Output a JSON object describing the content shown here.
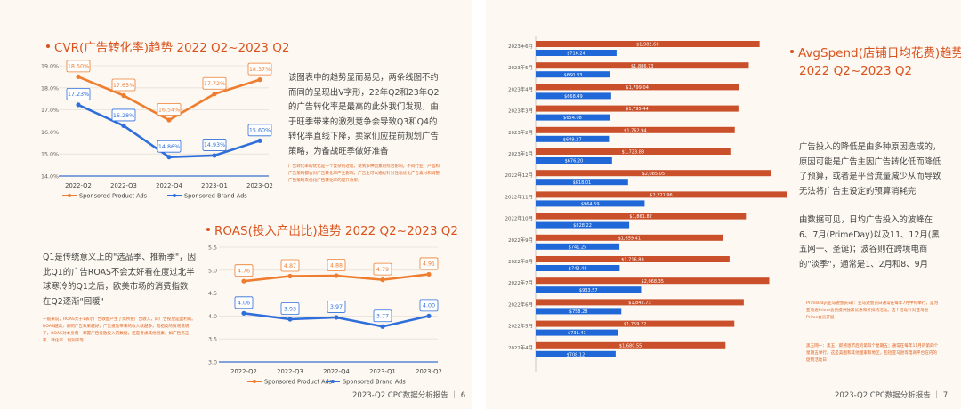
{
  "page6": {
    "cvr_title": "CVR(广告转化率)趋势 2022 Q2~2023 Q2",
    "cvr_text": "该图表中的趋势显而易见，两条线图不约而同的呈现出V字形，22年Q2和23年Q2的广告转化率是最高的此外我们发现，由于旺季带来的激烈竞争会导致Q3和Q4的转化率直线下降，卖家们应提前规划广告策略，为备战旺季做好准备",
    "cvr_note": "广告转化率的优化是一个复杂的过程，受到多种因素的综合影响。不同行业、产品和广告策略都会对广告转化率产生影响。广告主可以通过针对性地优化广告素材和调整广告策略来优化广告转化率的提升效果。",
    "roas_title": "ROAS(投入产出比)趋势 2022 Q2~2023 Q2",
    "roas_text": "Q1是传统意义上的\"选品季、推新季\"，因此Q1的广告ROAS不会太好看在度过北半球寒冷的Q1之后，欧美市场的消费指数在Q2逐渐\"回暖\"",
    "roas_note": "一般来说，ROAS大于1表示广告收益产生了比所投广告收入，即广告投放是盈利的。ROAS越高，表明广告效果越好，广告投放带来的收入就越多，而相反的情况说明了，ROAS对本身而一掌握广告投放投入的数据，还是考虑其他因素，如广告点击率、转化率、利润率等",
    "footer": "2023-Q2 CPC数据分析报告",
    "page_num": "6"
  },
  "page7": {
    "title_line1": "AvgSpend(店铺日均花费)趋势",
    "title_line2": "2022 Q2~2023 Q2",
    "text1": "广告投入的降低是由多种原因造成的，原因可能是广告主因广告转化低而降低了预算，或者是平台流量减少从而导致无法将广告主设定的预算消耗完",
    "text2": "由数据可见，日均广告投入的波峰在6、7月(PrimeDay)以及11、12月(黑五网一、圣诞)；波谷则在跨境电商的\"淡季\"，通常是1、2月和8、9月",
    "note1": "PrimeDay(亚马逊会员日)：亚马逊会员日通常在每年7月中旬举行，是为亚马逊Prime会员提供独家优惠和折扣的活动。这个活动针对亚马逊Prime会员开展",
    "note2": "黑五网一：黑五，即感恩节后的第四个星期五；通常在每年11月的第四个星期五举行。这是美国和其他国家和地区，包括亚马逊等电商平台在内的促销活动日",
    "footer": "2023-Q2 CPC数据分析报告",
    "page_num": "7"
  },
  "colors": {
    "accent": "#d9531e",
    "orange": "#ee7d30",
    "blue": "#2f6fdb",
    "bar_red": "#c9502a",
    "bar_blue": "#2068d8"
  },
  "chart_data": [
    {
      "type": "line",
      "categories": [
        "2022-Q2",
        "2022-Q3",
        "2022-Q4",
        "2023-Q1",
        "2023-Q2"
      ],
      "series": [
        {
          "name": "Sponsored Product Ads",
          "values": [
            18.5,
            17.65,
            16.54,
            17.72,
            18.37
          ],
          "labels": [
            "18.50%",
            "17.65%",
            "16.54%",
            "17.72%",
            "18.37%"
          ]
        },
        {
          "name": "Sponsored Brand Ads",
          "values": [
            17.23,
            16.28,
            14.86,
            14.93,
            15.6
          ],
          "labels": [
            "17.23%",
            "16.28%",
            "14.86%",
            "14.93%",
            "15.60%"
          ]
        }
      ],
      "yticks": [
        "19.0%",
        "18.0%",
        "17.0%",
        "16.0%",
        "15.0%",
        "14.0%"
      ],
      "ylim": [
        14.0,
        19.0
      ]
    },
    {
      "type": "line",
      "categories": [
        "2022-Q2",
        "2022-Q3",
        "2022-Q4",
        "2023-Q1",
        "2023-Q2"
      ],
      "series": [
        {
          "name": "Sponsored Product Ads",
          "values": [
            4.76,
            4.87,
            4.88,
            4.79,
            4.91
          ],
          "labels": [
            "4.76",
            "4.87",
            "4.88",
            "4.79",
            "4.91"
          ]
        },
        {
          "name": "Sponsored Brand Ads",
          "values": [
            4.06,
            3.93,
            3.97,
            3.77,
            4.0
          ],
          "labels": [
            "4.06",
            "3.93",
            "3.97",
            "3.77",
            "4.00"
          ]
        }
      ],
      "yticks": [
        "5.5",
        "5.0",
        "4.5",
        "4.0",
        "3.5",
        "3.0"
      ],
      "ylim": [
        3.0,
        5.5
      ]
    },
    {
      "type": "bar",
      "orientation": "horizontal",
      "categories": [
        "2023年6月",
        "2023年5月",
        "2023年4月",
        "2023年3月",
        "2023年2月",
        "2023年1月",
        "2022年12月",
        "2022年11月",
        "2022年10月",
        "2022年9月",
        "2022年8月",
        "2022年7月",
        "2022年6月",
        "2022年5月",
        "2022年4月"
      ],
      "series": [
        {
          "name": "",
          "values": [
            1982.66,
            1886.73,
            1799.04,
            1795.44,
            1762.94,
            1723.88,
            2085.05,
            2221.96,
            1861.82,
            1659.41,
            1716.89,
            2068.35,
            1842.73,
            1759.22,
            1680.55
          ],
          "labels": [
            "$1,982.66",
            "$1,886.73",
            "$1,799.04",
            "$1,795.44",
            "$1,762.94",
            "$1,723.88",
            "$2,085.05",
            "$2,221.96",
            "$1,861.82",
            "$1,659.41",
            "$1,716.89",
            "$2,068.35",
            "$1,842.73",
            "$1,759.22",
            "$1,680.55"
          ]
        },
        {
          "name": "",
          "values": [
            716.24,
            660.83,
            668.49,
            654.08,
            649.27,
            676.2,
            818.01,
            964.59,
            828.22,
            741.25,
            743.48,
            933.57,
            758.28,
            731.41,
            708.12
          ],
          "labels": [
            "$716.24",
            "$660.83",
            "$668.49",
            "$654.08",
            "$649.27",
            "$676.20",
            "$818.01",
            "$964.59",
            "$828.22",
            "$741.25",
            "$743.48",
            "$933.57",
            "$758.28",
            "$731.41",
            "$708.12"
          ]
        }
      ]
    }
  ]
}
